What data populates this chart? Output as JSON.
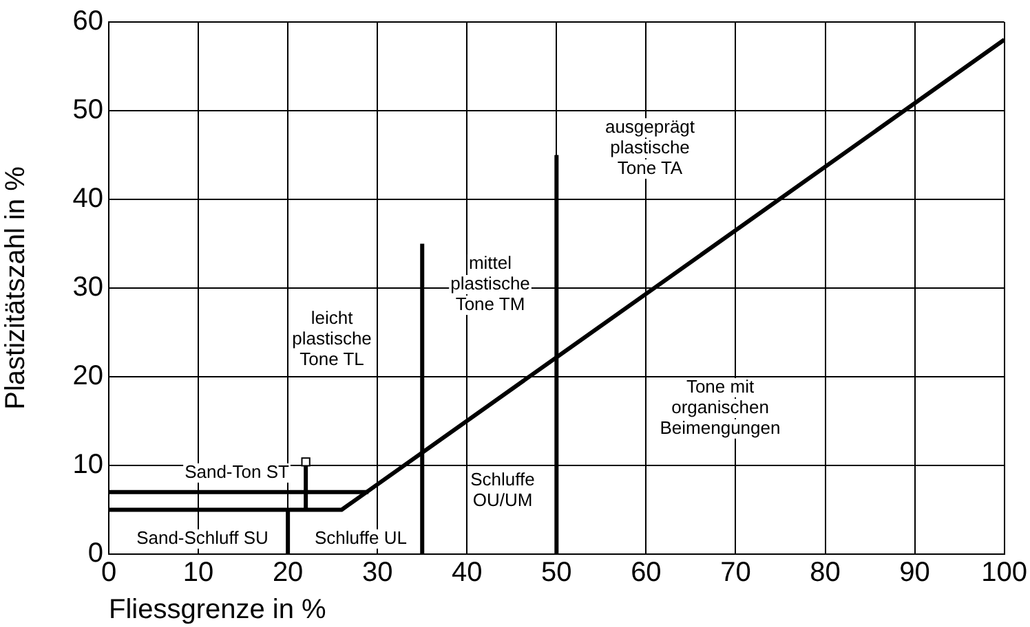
{
  "chart_data": {
    "type": "line",
    "xlabel": "Fliessgrenze in %",
    "ylabel": "Plastizitätszahl in %",
    "xlim": [
      0,
      100
    ],
    "xticks": [
      0,
      10,
      20,
      30,
      40,
      50,
      60,
      70,
      80,
      90,
      100
    ],
    "ylim": [
      0,
      60
    ],
    "yticks": [
      0,
      10,
      20,
      30,
      40,
      50,
      60
    ],
    "grid": true,
    "legend": false,
    "marker": "none",
    "line_style": "solid",
    "series": [
      {
        "color": "#000000",
        "x": [
          0,
          26,
          100
        ],
        "values": [
          5,
          5,
          58
        ]
      },
      {
        "color": "#000000",
        "x": [
          0,
          29
        ],
        "values": [
          7,
          7
        ]
      },
      {
        "color": "#000000",
        "x": [
          20,
          20
        ],
        "values": [
          0,
          5
        ]
      },
      {
        "color": "#000000",
        "x": [
          35,
          35
        ],
        "values": [
          0,
          35
        ]
      },
      {
        "color": "#000000",
        "x": [
          50,
          50
        ],
        "values": [
          0,
          45
        ]
      },
      {
        "color": "#000000",
        "x": [
          22,
          22
        ],
        "values": [
          5,
          10
        ]
      },
      {
        "type": "scatter",
        "marker": "square",
        "color": "#000000",
        "x": [
          22
        ],
        "values": [
          10.4
        ]
      }
    ],
    "annotations": [
      "Sand-Schluff SU",
      "Schluffe UL",
      "Sand-Ton ST",
      "leicht\nplastische\nTone TL",
      "mittel\nplastische\nTone TM",
      "Schluffe\nOU/UM",
      "ausgeprägt\nplastische\nTone TA",
      "Tone mit\norganischen\nBeimengungen"
    ]
  }
}
